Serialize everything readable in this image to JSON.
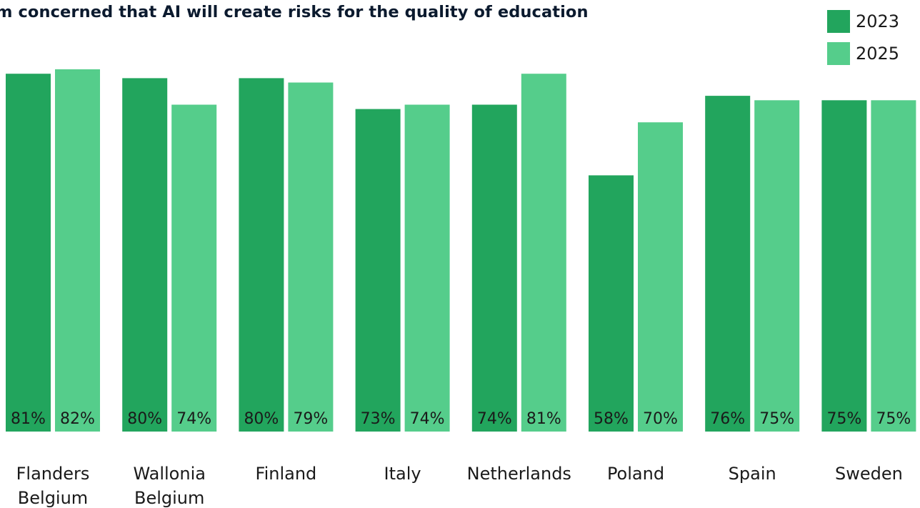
{
  "chart_data": {
    "type": "bar",
    "title": "m concerned that AI will create risks for the quality of education",
    "categories": [
      "Flanders\nBelgium",
      "Wallonia\nBelgium",
      "Finland",
      "Italy",
      "Netherlands",
      "Poland",
      "Spain",
      "Sweden"
    ],
    "series": [
      {
        "name": "2023",
        "values": [
          81,
          80,
          80,
          73,
          74,
          58,
          76,
          75
        ],
        "labels": [
          "81%",
          "80%",
          "80%",
          "73%",
          "74%",
          "58%",
          "76%",
          "75%"
        ],
        "color": "#22a55d"
      },
      {
        "name": "2025",
        "values": [
          82,
          74,
          79,
          74,
          81,
          70,
          75,
          75
        ],
        "labels": [
          "82%",
          "74%",
          "79%",
          "74%",
          "81%",
          "70%",
          "75%",
          "75%"
        ],
        "color": "#55cd8b"
      }
    ],
    "ylim": [
      0,
      82
    ],
    "grid": false,
    "legend_position": "top-right",
    "label_color": "#1a1a1a"
  }
}
